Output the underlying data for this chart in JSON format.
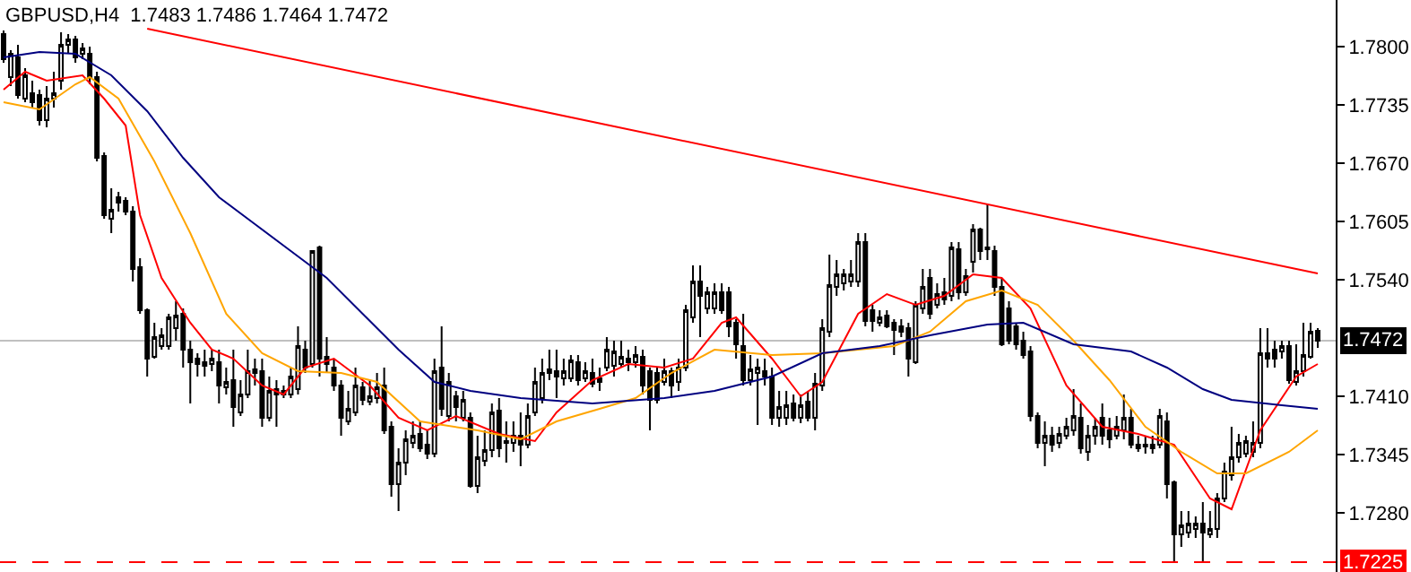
{
  "chart_data": {
    "type": "candlestick",
    "title": "GBPUSD,H4  1.7483 1.7486 1.7464 1.7472",
    "categories": [
      null,
      null,
      null,
      null,
      null,
      null,
      null,
      null,
      null,
      null,
      null,
      null,
      null,
      null,
      null,
      null,
      null,
      null,
      null,
      null,
      null,
      null,
      null,
      null,
      null,
      null,
      null,
      null,
      null,
      null,
      null,
      null,
      null,
      null,
      null,
      null,
      null,
      null,
      null,
      null,
      null,
      null,
      null,
      null,
      null,
      null,
      null,
      null,
      null,
      null,
      null,
      null,
      null,
      null,
      null,
      null,
      null,
      null,
      null,
      null,
      null,
      null,
      null,
      null,
      null,
      null,
      null,
      null,
      null,
      null,
      null,
      null,
      null,
      null,
      null,
      null,
      null,
      null,
      null,
      null,
      null,
      null,
      null,
      null,
      null,
      null,
      null,
      null,
      null,
      null,
      null,
      null,
      null,
      null,
      null,
      null,
      null,
      null,
      null,
      null,
      null,
      null,
      null,
      null,
      null,
      null,
      null,
      null,
      null,
      null,
      null,
      null,
      null,
      null,
      null,
      null,
      null,
      null,
      null,
      null,
      null,
      null,
      null,
      null,
      null,
      null,
      null,
      null,
      null,
      null,
      null,
      null,
      null,
      null,
      null,
      null,
      null,
      null,
      null,
      null,
      null,
      null,
      null,
      null,
      null,
      null,
      null,
      null,
      null,
      null,
      null,
      null,
      null,
      null,
      null,
      null,
      null,
      null,
      null,
      null,
      null,
      null,
      null,
      null,
      null,
      null,
      null,
      null,
      null,
      null,
      null,
      null,
      null,
      null,
      null,
      null,
      null,
      null,
      null,
      null,
      null,
      null,
      null,
      null
    ],
    "ohlc": [
      [
        1.7814,
        1.7818,
        1.7782,
        1.7786
      ],
      [
        1.7766,
        1.7796,
        1.7756,
        1.7792
      ],
      [
        1.7788,
        1.7802,
        1.7742,
        1.7746
      ],
      [
        1.7742,
        1.7776,
        1.7738,
        1.7768
      ],
      [
        1.7748,
        1.7762,
        1.7732,
        1.7738
      ],
      [
        1.7746,
        1.7752,
        1.7712,
        1.7718
      ],
      [
        1.7718,
        1.7756,
        1.771,
        1.7742
      ],
      [
        1.7742,
        1.7772,
        1.7732,
        1.7748
      ],
      [
        1.7762,
        1.7816,
        1.7752,
        1.7802
      ],
      [
        1.7802,
        1.7814,
        1.7792,
        1.7808
      ],
      [
        1.7808,
        1.7812,
        1.7782,
        1.7788
      ],
      [
        1.7792,
        1.7804,
        1.7786,
        1.7798
      ],
      [
        1.7792,
        1.78,
        1.7758,
        1.7766
      ],
      [
        1.7766,
        1.7772,
        1.7672,
        1.7676
      ],
      [
        1.7678,
        1.7682,
        1.7608,
        1.7612
      ],
      [
        1.7608,
        1.7642,
        1.7592,
        1.7618
      ],
      [
        1.7632,
        1.7638,
        1.7616,
        1.7626
      ],
      [
        1.7628,
        1.7632,
        1.7612,
        1.7616
      ],
      [
        1.7616,
        1.7622,
        1.7538,
        1.7552
      ],
      [
        1.7554,
        1.7564,
        1.7502,
        1.7506
      ],
      [
        1.7506,
        1.7508,
        1.7432,
        1.7452
      ],
      [
        1.7454,
        1.7492,
        1.7452,
        1.7476
      ],
      [
        1.7466,
        1.7486,
        1.7462,
        1.7478
      ],
      [
        1.7466,
        1.7502,
        1.7462,
        1.7498
      ],
      [
        1.7486,
        1.7516,
        1.7472,
        1.75
      ],
      [
        1.7502,
        1.7508,
        1.7442,
        1.7462
      ],
      [
        1.7462,
        1.7472,
        1.7402,
        1.7448
      ],
      [
        1.7452,
        1.7458,
        1.7432,
        1.7446
      ],
      [
        1.7444,
        1.7462,
        1.7432,
        1.7448
      ],
      [
        1.7446,
        1.7462,
        1.7438,
        1.7452
      ],
      [
        1.7448,
        1.7462,
        1.7402,
        1.7422
      ],
      [
        1.742,
        1.7442,
        1.7412,
        1.7426
      ],
      [
        1.7428,
        1.7462,
        1.7376,
        1.7398
      ],
      [
        1.7392,
        1.7428,
        1.7388,
        1.7412
      ],
      [
        1.7412,
        1.7462,
        1.7408,
        1.7438
      ],
      [
        1.744,
        1.7452,
        1.7422,
        1.7436
      ],
      [
        1.7438,
        1.7452,
        1.7376,
        1.7386
      ],
      [
        1.7386,
        1.7432,
        1.7382,
        1.7416
      ],
      [
        1.7418,
        1.7428,
        1.7376,
        1.7412
      ],
      [
        1.7416,
        1.7422,
        1.7408,
        1.7412
      ],
      [
        1.7412,
        1.7442,
        1.7408,
        1.7432
      ],
      [
        1.7418,
        1.7488,
        1.7412,
        1.7466
      ],
      [
        1.7462,
        1.7472,
        1.7436,
        1.7442
      ],
      [
        1.7446,
        1.7572,
        1.7442,
        1.7572
      ],
      [
        1.7576,
        1.7578,
        1.7432,
        1.7452
      ],
      [
        1.7454,
        1.7476,
        1.7436,
        1.7446
      ],
      [
        1.7442,
        1.7452,
        1.7416,
        1.7422
      ],
      [
        1.7422,
        1.7428,
        1.7366,
        1.7386
      ],
      [
        1.7382,
        1.7416,
        1.7378,
        1.7396
      ],
      [
        1.7392,
        1.7442,
        1.7388,
        1.7422
      ],
      [
        1.742,
        1.7426,
        1.74,
        1.7406
      ],
      [
        1.7404,
        1.7428,
        1.74,
        1.741
      ],
      [
        1.7408,
        1.7436,
        1.7402,
        1.742
      ],
      [
        1.7422,
        1.7442,
        1.7368,
        1.7372
      ],
      [
        1.7376,
        1.7382,
        1.7298,
        1.7312
      ],
      [
        1.7312,
        1.7352,
        1.7282,
        1.7336
      ],
      [
        1.7336,
        1.7372,
        1.7322,
        1.7362
      ],
      [
        1.7358,
        1.7382,
        1.7352,
        1.7366
      ],
      [
        1.7368,
        1.7382,
        1.7348,
        1.7352
      ],
      [
        1.7356,
        1.7372,
        1.734,
        1.7346
      ],
      [
        1.7346,
        1.7452,
        1.7342,
        1.7438
      ],
      [
        1.7442,
        1.7488,
        1.7388,
        1.7396
      ],
      [
        1.7388,
        1.7436,
        1.7382,
        1.7426
      ],
      [
        1.741,
        1.7416,
        1.7382,
        1.7398
      ],
      [
        1.7386,
        1.7416,
        1.7382,
        1.7406
      ],
      [
        1.7386,
        1.7392,
        1.7308,
        1.731
      ],
      [
        1.731,
        1.7366,
        1.7302,
        1.7342
      ],
      [
        1.7338,
        1.7372,
        1.7332,
        1.735
      ],
      [
        1.735,
        1.7402,
        1.7342,
        1.7392
      ],
      [
        1.7394,
        1.7408,
        1.7342,
        1.7352
      ],
      [
        1.7358,
        1.7382,
        1.7336,
        1.736
      ],
      [
        1.7358,
        1.7382,
        1.7348,
        1.7366
      ],
      [
        1.7366,
        1.7392,
        1.7332,
        1.7356
      ],
      [
        1.7356,
        1.7402,
        1.7352,
        1.7388
      ],
      [
        1.7392,
        1.7442,
        1.7388,
        1.7426
      ],
      [
        1.7408,
        1.7452,
        1.7402,
        1.7436
      ],
      [
        1.7436,
        1.7462,
        1.7428,
        1.744
      ],
      [
        1.7438,
        1.7462,
        1.7408,
        1.7432
      ],
      [
        1.743,
        1.7452,
        1.7422,
        1.7438
      ],
      [
        1.743,
        1.7456,
        1.7426,
        1.745
      ],
      [
        1.7448,
        1.7456,
        1.7422,
        1.7428
      ],
      [
        1.743,
        1.7448,
        1.7426,
        1.7438
      ],
      [
        1.7436,
        1.7452,
        1.742,
        1.7424
      ],
      [
        1.743,
        1.7442,
        1.7416,
        1.7426
      ],
      [
        1.7442,
        1.7476,
        1.7438,
        1.7462
      ],
      [
        1.7444,
        1.7472,
        1.7432,
        1.746
      ],
      [
        1.7446,
        1.7472,
        1.7442,
        1.7454
      ],
      [
        1.7448,
        1.7462,
        1.7438,
        1.7452
      ],
      [
        1.7448,
        1.7466,
        1.7442,
        1.7456
      ],
      [
        1.7454,
        1.7462,
        1.7412,
        1.7422
      ],
      [
        1.7438,
        1.7442,
        1.7372,
        1.7406
      ],
      [
        1.7436,
        1.7442,
        1.7402,
        1.7406
      ],
      [
        1.7426,
        1.7452,
        1.7422,
        1.7438
      ],
      [
        1.7438,
        1.7442,
        1.7408,
        1.7422
      ],
      [
        1.7426,
        1.7452,
        1.7416,
        1.7442
      ],
      [
        1.7442,
        1.7512,
        1.7438,
        1.7506
      ],
      [
        1.7498,
        1.7556,
        1.7492,
        1.7538
      ],
      [
        1.7538,
        1.7556,
        1.7476,
        1.7522
      ],
      [
        1.7508,
        1.7532,
        1.7502,
        1.7526
      ],
      [
        1.7508,
        1.7536,
        1.7502,
        1.7526
      ],
      [
        1.7526,
        1.7536,
        1.7502,
        1.7506
      ],
      [
        1.7526,
        1.7532,
        1.7476,
        1.7488
      ],
      [
        1.7492,
        1.7496,
        1.7452,
        1.7468
      ],
      [
        1.7466,
        1.7502,
        1.7422,
        1.7428
      ],
      [
        1.7428,
        1.7456,
        1.7422,
        1.744
      ],
      [
        1.7436,
        1.7452,
        1.7378,
        1.7442
      ],
      [
        1.7438,
        1.7452,
        1.7422,
        1.7432
      ],
      [
        1.7432,
        1.7442,
        1.7378,
        1.7386
      ],
      [
        1.7386,
        1.7416,
        1.7376,
        1.7398
      ],
      [
        1.7386,
        1.7416,
        1.7378,
        1.74
      ],
      [
        1.7402,
        1.7412,
        1.7382,
        1.7386
      ],
      [
        1.7386,
        1.7412,
        1.738,
        1.74
      ],
      [
        1.7404,
        1.7416,
        1.7382,
        1.7386
      ],
      [
        1.7386,
        1.7436,
        1.7372,
        1.7424
      ],
      [
        1.7422,
        1.7496,
        1.7416,
        1.7486
      ],
      [
        1.7482,
        1.7568,
        1.7476,
        1.7534
      ],
      [
        1.7532,
        1.7562,
        1.7522,
        1.7546
      ],
      [
        1.7536,
        1.7552,
        1.7528,
        1.7546
      ],
      [
        1.7538,
        1.7562,
        1.7532,
        1.7546
      ],
      [
        1.7538,
        1.7592,
        1.7532,
        1.7582
      ],
      [
        1.7582,
        1.7592,
        1.7488,
        1.7494
      ],
      [
        1.7506,
        1.7512,
        1.7482,
        1.7494
      ],
      [
        1.7492,
        1.7506,
        1.7488,
        1.7498
      ],
      [
        1.75,
        1.7506,
        1.7486,
        1.7488
      ],
      [
        1.7492,
        1.7496,
        1.7456,
        1.7484
      ],
      [
        1.7488,
        1.7496,
        1.7476,
        1.7482
      ],
      [
        1.7486,
        1.7492,
        1.7432,
        1.7452
      ],
      [
        1.7448,
        1.7516,
        1.7446,
        1.7512
      ],
      [
        1.7508,
        1.7552,
        1.7502,
        1.7532
      ],
      [
        1.7542,
        1.7552,
        1.7496,
        1.7502
      ],
      [
        1.7512,
        1.7536,
        1.7508,
        1.7524
      ],
      [
        1.7526,
        1.7542,
        1.7512,
        1.7518
      ],
      [
        1.7522,
        1.7582,
        1.7516,
        1.7576
      ],
      [
        1.7574,
        1.7582,
        1.7518,
        1.7526
      ],
      [
        1.7526,
        1.7552,
        1.7522,
        1.7544
      ],
      [
        1.756,
        1.7602,
        1.7548,
        1.7596
      ],
      [
        1.7596,
        1.7598,
        1.7562,
        1.7572
      ],
      [
        1.7576,
        1.7624,
        1.7562,
        1.7574
      ],
      [
        1.7572,
        1.7578,
        1.7522,
        1.7532
      ],
      [
        1.7532,
        1.7542,
        1.7466,
        1.7468
      ],
      [
        1.7508,
        1.7516,
        1.7468,
        1.7472
      ],
      [
        1.7488,
        1.7492,
        1.7462,
        1.7468
      ],
      [
        1.7472,
        1.7482,
        1.7452,
        1.7456
      ],
      [
        1.746,
        1.7466,
        1.7382,
        1.7388
      ],
      [
        1.7388,
        1.7392,
        1.7352,
        1.7358
      ],
      [
        1.7358,
        1.7382,
        1.7332,
        1.7366
      ],
      [
        1.7366,
        1.7376,
        1.7348,
        1.7356
      ],
      [
        1.7358,
        1.7376,
        1.7352,
        1.7368
      ],
      [
        1.7366,
        1.7386,
        1.7362,
        1.7376
      ],
      [
        1.7372,
        1.7418,
        1.7366,
        1.7388
      ],
      [
        1.7386,
        1.7402,
        1.7346,
        1.7352
      ],
      [
        1.7348,
        1.7378,
        1.7338,
        1.7366
      ],
      [
        1.7366,
        1.7386,
        1.7356,
        1.7376
      ],
      [
        1.7386,
        1.7402,
        1.7356,
        1.7366
      ],
      [
        1.7372,
        1.7386,
        1.7352,
        1.7362
      ],
      [
        1.7366,
        1.7388,
        1.7362,
        1.7376
      ],
      [
        1.7372,
        1.7412,
        1.7362,
        1.7386
      ],
      [
        1.7386,
        1.7396,
        1.7352,
        1.7356
      ],
      [
        1.7356,
        1.7366,
        1.7348,
        1.7352
      ],
      [
        1.7356,
        1.7366,
        1.7346,
        1.7354
      ],
      [
        1.7356,
        1.7366,
        1.7346,
        1.7352
      ],
      [
        1.7356,
        1.7396,
        1.7352,
        1.7388
      ],
      [
        1.7382,
        1.7392,
        1.7296,
        1.7312
      ],
      [
        1.7314,
        1.7316,
        1.7226,
        1.7256
      ],
      [
        1.7256,
        1.7282,
        1.7242,
        1.7266
      ],
      [
        1.7258,
        1.7282,
        1.7252,
        1.7268
      ],
      [
        1.7262,
        1.7276,
        1.7252,
        1.7268
      ],
      [
        1.7268,
        1.7292,
        1.7226,
        1.7258
      ],
      [
        1.7256,
        1.7282,
        1.7252,
        1.7262
      ],
      [
        1.7262,
        1.7302,
        1.7252,
        1.7296
      ],
      [
        1.7296,
        1.7336,
        1.7292,
        1.7326
      ],
      [
        1.7322,
        1.7376,
        1.7316,
        1.7342
      ],
      [
        1.7342,
        1.7368,
        1.7336,
        1.7358
      ],
      [
        1.7346,
        1.7366,
        1.7342,
        1.736
      ],
      [
        1.7348,
        1.7382,
        1.7342,
        1.7358
      ],
      [
        1.7358,
        1.7486,
        1.7352,
        1.7458
      ],
      [
        1.7458,
        1.7486,
        1.7442,
        1.7452
      ],
      [
        1.7462,
        1.7472,
        1.7442,
        1.7452
      ],
      [
        1.746,
        1.7472,
        1.7452,
        1.7466
      ],
      [
        1.7466,
        1.7472,
        1.7424,
        1.7428
      ],
      [
        1.7426,
        1.7468,
        1.7422,
        1.7438
      ],
      [
        1.7438,
        1.7492,
        1.7432,
        1.7456
      ],
      [
        1.7454,
        1.7492,
        1.7452,
        1.7482
      ],
      [
        1.7483,
        1.7486,
        1.7464,
        1.7472
      ]
    ],
    "series": [
      {
        "type": "line",
        "color": "#ff0000",
        "values": [
          1.7752,
          null,
          null,
          1.7772,
          null,
          null,
          1.7762,
          null,
          null,
          null,
          null,
          1.7768,
          null,
          null,
          1.7742,
          null,
          null,
          1.7712,
          null,
          1.7612,
          null,
          null,
          1.7542,
          null,
          null,
          null,
          1.7492,
          null,
          null,
          1.7462,
          null,
          null,
          1.7452,
          null,
          null,
          null,
          1.7422,
          null,
          null,
          1.7412,
          null,
          null,
          1.7442,
          null,
          null,
          null,
          1.7452,
          null,
          null,
          null,
          null,
          1.7422,
          null,
          null,
          null,
          1.7386,
          null,
          null,
          null,
          1.7372,
          null,
          null,
          null,
          1.7388,
          null,
          null,
          null,
          null,
          null,
          1.7368,
          null,
          null,
          null,
          null,
          1.736,
          null,
          null,
          1.7392,
          null,
          null,
          null,
          null,
          1.7428,
          null,
          null,
          null,
          null,
          1.7446,
          null,
          null,
          null,
          null,
          1.7442,
          null,
          null,
          null,
          1.7452,
          null,
          null,
          null,
          1.7492,
          null,
          1.7498,
          null,
          null,
          null,
          null,
          1.7452,
          null,
          null,
          null,
          1.741,
          null,
          null,
          1.7426,
          null,
          null,
          null,
          null,
          1.7502,
          null,
          null,
          null,
          1.7524,
          null,
          null,
          null,
          1.7512,
          null,
          null,
          null,
          1.7522,
          null,
          null,
          null,
          1.7546,
          null,
          null,
          null,
          1.7542,
          null,
          null,
          null,
          1.7508,
          null,
          null,
          null,
          null,
          1.7422,
          null,
          null,
          null,
          null,
          1.7376,
          null,
          null,
          null,
          null,
          1.7368,
          null,
          null,
          null,
          null,
          1.7356,
          null,
          null,
          null,
          null,
          1.7296,
          null,
          null,
          1.7284,
          null,
          null,
          null,
          1.7372,
          null,
          null,
          null,
          null,
          1.7432,
          null,
          null,
          1.7446
        ]
      },
      {
        "type": "line",
        "color": "#ffa500",
        "values": [
          1.7738,
          null,
          null,
          null,
          null,
          1.773,
          null,
          null,
          null,
          null,
          1.7758,
          null,
          1.7766,
          null,
          null,
          null,
          1.7742,
          null,
          null,
          null,
          null,
          1.7672,
          null,
          null,
          null,
          null,
          1.7592,
          null,
          null,
          null,
          null,
          1.7502,
          null,
          null,
          null,
          null,
          1.7458,
          null,
          null,
          null,
          null,
          1.7438,
          null,
          null,
          null,
          null,
          null,
          1.7436,
          null,
          null,
          null,
          null,
          1.7426,
          null,
          null,
          null,
          null,
          null,
          1.7382,
          null,
          null,
          null,
          null,
          null,
          null,
          null,
          1.7372,
          null,
          null,
          null,
          null,
          null,
          1.7362,
          null,
          null,
          null,
          null,
          1.7382,
          null,
          null,
          null,
          null,
          null,
          1.7396,
          null,
          null,
          null,
          null,
          1.7408,
          null,
          null,
          null,
          null,
          1.7436,
          null,
          null,
          null,
          null,
          null,
          1.7462,
          null,
          null,
          null,
          null,
          null,
          null,
          null,
          1.7456,
          null,
          null,
          null,
          null,
          null,
          null,
          1.7458,
          null,
          null,
          null,
          null,
          null,
          null,
          null,
          null,
          null,
          1.7466,
          null,
          null,
          null,
          null,
          1.7482,
          null,
          null,
          null,
          null,
          1.7516,
          null,
          null,
          null,
          null,
          1.7528,
          null,
          null,
          null,
          null,
          1.7512,
          null,
          null,
          null,
          null,
          1.7472,
          null,
          null,
          null,
          null,
          1.7428,
          null,
          null,
          null,
          null,
          1.7376,
          null,
          null,
          null,
          null,
          1.7348,
          null,
          null,
          null,
          null,
          1.7324,
          null,
          null,
          null,
          1.7324,
          null,
          null,
          null,
          null,
          null,
          1.7348,
          null,
          null,
          null,
          1.7372
        ]
      },
      {
        "type": "line",
        "color": "#000080",
        "values": [
          1.7788,
          null,
          null,
          null,
          null,
          1.7794,
          null,
          null,
          null,
          null,
          1.7792,
          null,
          null,
          null,
          null,
          1.7768,
          null,
          null,
          null,
          null,
          1.7728,
          null,
          null,
          null,
          null,
          1.7676,
          null,
          null,
          null,
          null,
          1.7632,
          null,
          null,
          null,
          null,
          1.7602,
          null,
          null,
          null,
          null,
          1.7572,
          null,
          null,
          null,
          null,
          1.7542,
          null,
          null,
          null,
          null,
          1.7502,
          null,
          null,
          null,
          null,
          1.7462,
          null,
          null,
          null,
          null,
          1.7426,
          null,
          null,
          null,
          null,
          1.7416,
          null,
          null,
          null,
          null,
          null,
          null,
          1.7408,
          null,
          null,
          null,
          null,
          null,
          null,
          null,
          null,
          null,
          1.7402,
          null,
          null,
          null,
          null,
          null,
          null,
          null,
          null,
          null,
          1.7408,
          null,
          null,
          null,
          null,
          null,
          null,
          1.7416,
          null,
          null,
          null,
          null,
          null,
          null,
          null,
          1.7432,
          null,
          null,
          null,
          null,
          null,
          null,
          1.7458,
          null,
          null,
          null,
          null,
          null,
          null,
          null,
          1.7466,
          null,
          null,
          null,
          null,
          null,
          null,
          1.7478,
          null,
          null,
          null,
          null,
          null,
          null,
          null,
          1.749,
          null,
          null,
          null,
          null,
          1.7492,
          null,
          null,
          null,
          null,
          null,
          null,
          1.7468,
          null,
          null,
          null,
          null,
          null,
          null,
          null,
          1.746,
          null,
          null,
          null,
          null,
          1.7442,
          null,
          null,
          null,
          null,
          1.7418,
          null,
          null,
          null,
          1.7406,
          null,
          null,
          null,
          null,
          null,
          null,
          1.74,
          null,
          null,
          null,
          null,
          1.7396
        ]
      },
      {
        "type": "line",
        "color": "#ff0000",
        "values": [
          null,
          null,
          null,
          null,
          null,
          null,
          null,
          null,
          null,
          null,
          null,
          null,
          null,
          null,
          null,
          null,
          null,
          null,
          null,
          null,
          1.782,
          null,
          null,
          null,
          null,
          null,
          null,
          null,
          null,
          null,
          null,
          null,
          null,
          null,
          null,
          null,
          null,
          null,
          null,
          null,
          null,
          null,
          null,
          null,
          null,
          null,
          null,
          null,
          null,
          null,
          null,
          null,
          null,
          null,
          null,
          null,
          null,
          null,
          null,
          null,
          null,
          null,
          null,
          null,
          null,
          null,
          null,
          null,
          null,
          null,
          null,
          null,
          null,
          null,
          null,
          null,
          null,
          null,
          null,
          null,
          null,
          null,
          null,
          null,
          null,
          null,
          null,
          null,
          null,
          null,
          null,
          null,
          null,
          null,
          null,
          null,
          null,
          null,
          null,
          null,
          null,
          null,
          null,
          null,
          null,
          null,
          null,
          null,
          null,
          null,
          null,
          null,
          null,
          null,
          null,
          null,
          null,
          null,
          null,
          null,
          null,
          null,
          null,
          null,
          null,
          null,
          null,
          null,
          null,
          null,
          null,
          null,
          null,
          null,
          null,
          null,
          null,
          null,
          null,
          null,
          null,
          null,
          null,
          null,
          null,
          null,
          null,
          null,
          null,
          null,
          null,
          null,
          null,
          null,
          null,
          null,
          null,
          null,
          null,
          null,
          null,
          null,
          null,
          null,
          null,
          null,
          null,
          null,
          null,
          null,
          null,
          null,
          null,
          null,
          null,
          null,
          null,
          null,
          null,
          null,
          null,
          null,
          null,
          1.7547
        ]
      }
    ],
    "ref_lines": [
      {
        "axis": "y",
        "value": 1.7472,
        "label": "1.7472",
        "color": "#c0c0c0",
        "line_style": "solid"
      },
      {
        "axis": "y",
        "value": 1.7225,
        "label": "1.7225",
        "color": "#ff0000",
        "line_style": "dashed"
      }
    ],
    "ylim": [
      1.7214,
      1.7852
    ],
    "yticks": [
      {
        "value": 1.78,
        "label": "1.7800"
      },
      1.7735,
      {
        "value": 1.767,
        "label": "1.7670"
      },
      1.7605,
      {
        "value": 1.754,
        "label": "1.7540"
      },
      {
        "value": 1.741,
        "label": "1.7410"
      },
      1.7345,
      {
        "value": 1.728,
        "label": "1.7280"
      }
    ],
    "tick_labels": "y"
  }
}
